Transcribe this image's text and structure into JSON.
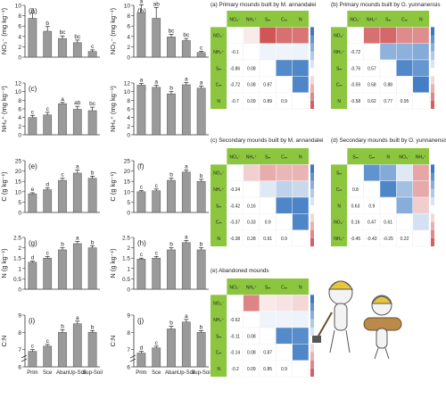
{
  "chart_data": [
    {
      "type": "bar",
      "panel": "(a)",
      "ylabel": "NO3- (mg kg-1)",
      "categories": [
        "Prim",
        "Sce",
        "Aban",
        "Up-Soil",
        "Sup-Soil"
      ],
      "values": [
        7.5,
        5.0,
        3.6,
        2.8,
        1.1
      ],
      "errors": [
        1.0,
        0.9,
        0.5,
        0.5,
        0.3
      ],
      "letters": [
        "a",
        "b",
        "bc",
        "bc",
        "c"
      ],
      "ylim": [
        0,
        10
      ],
      "yticks": [
        0,
        2,
        4,
        6,
        8,
        10
      ]
    },
    {
      "type": "bar",
      "panel": "(b)",
      "ylabel": "NO3- (mg kg-1)",
      "categories": [
        "Prim",
        "Sce",
        "Aban",
        "Up-Soil",
        "Sup-Soil"
      ],
      "values": [
        8.6,
        7.5,
        3.9,
        3.2,
        0.9
      ],
      "errors": [
        1.5,
        2.1,
        0.5,
        0.4,
        0.2
      ],
      "letters": [
        "a",
        "ab",
        "bc",
        "bc",
        "c"
      ],
      "ylim": [
        0,
        10
      ],
      "yticks": [
        0,
        2,
        4,
        6,
        8,
        10
      ]
    },
    {
      "type": "bar",
      "panel": "(c)",
      "ylabel": "NH4+ (mg kg-1)",
      "categories": [
        "Prim",
        "Sce",
        "Aban",
        "Up-Soil",
        "Sup-Soil"
      ],
      "values": [
        4.0,
        4.6,
        7.2,
        5.9,
        5.6
      ],
      "errors": [
        0.5,
        0.6,
        0.3,
        0.7,
        0.8
      ],
      "letters": [
        "c",
        "c",
        "a",
        "ab",
        "bc"
      ],
      "ylim": [
        0,
        12
      ],
      "yticks": [
        0,
        2,
        4,
        6,
        8,
        10,
        12
      ]
    },
    {
      "type": "bar",
      "panel": "(d)",
      "ylabel": "NH4+ (mg kg-1)",
      "categories": [
        "Prim",
        "Sce",
        "Aban",
        "Up-Soil",
        "Sup-Soil"
      ],
      "values": [
        11.5,
        11.0,
        9.5,
        11.6,
        10.8
      ],
      "errors": [
        0.4,
        0.5,
        0.5,
        0.5,
        0.5
      ],
      "letters": [
        "a",
        "a",
        "b",
        "a",
        "a"
      ],
      "ylim": [
        0,
        12
      ],
      "yticks": [
        0,
        2,
        4,
        6,
        8,
        10,
        12
      ]
    },
    {
      "type": "bar",
      "panel": "(e)",
      "ylabel": "C (g kg-1)",
      "categories": [
        "Prim",
        "Sce",
        "Aban",
        "Up-Soil",
        "Sup-Soil"
      ],
      "values": [
        9.0,
        11.0,
        15.5,
        19.0,
        16.5
      ],
      "errors": [
        0.5,
        0.8,
        1.0,
        1.5,
        1.0
      ],
      "letters": [
        "e",
        "d",
        "c",
        "a",
        "b"
      ],
      "ylim": [
        0,
        25
      ],
      "yticks": [
        0,
        5,
        10,
        15,
        20,
        25
      ]
    },
    {
      "type": "bar",
      "panel": "(f)",
      "ylabel": "C (g kg-1)",
      "categories": [
        "Prim",
        "Sce",
        "Aban",
        "Up-Soil",
        "Sup-Soil"
      ],
      "values": [
        10.0,
        10.5,
        15.5,
        19.5,
        15.0
      ],
      "errors": [
        0.5,
        0.8,
        1.0,
        1.0,
        1.0
      ],
      "letters": [
        "c",
        "c",
        "b",
        "a",
        "b"
      ],
      "ylim": [
        0,
        25
      ],
      "yticks": [
        0,
        5,
        10,
        15,
        20,
        25
      ]
    },
    {
      "type": "bar",
      "panel": "(g)",
      "ylabel": "N (g kg-1)",
      "categories": [
        "Prim",
        "Sce",
        "Aban",
        "Up-Soil",
        "Sup-Soil"
      ],
      "values": [
        1.3,
        1.5,
        1.9,
        2.2,
        2.0
      ],
      "errors": [
        0.05,
        0.08,
        0.1,
        0.1,
        0.1
      ],
      "letters": [
        "d",
        "c",
        "b",
        "a",
        "b"
      ],
      "ylim": [
        0,
        2.5
      ],
      "yticks": [
        0,
        0.5,
        1.0,
        1.5,
        2.0,
        2.5
      ]
    },
    {
      "type": "bar",
      "panel": "(h)",
      "ylabel": "N (g kg-1)",
      "categories": [
        "Prim",
        "Sce",
        "Aban",
        "Up-Soil",
        "Sup-Soil"
      ],
      "values": [
        1.45,
        1.5,
        1.9,
        2.25,
        1.9
      ],
      "errors": [
        0.05,
        0.08,
        0.1,
        0.1,
        0.1
      ],
      "letters": [
        "c",
        "c",
        "b",
        "a",
        "b"
      ],
      "ylim": [
        0,
        2.5
      ],
      "yticks": [
        0,
        0.5,
        1.0,
        1.5,
        2.0,
        2.5
      ]
    },
    {
      "type": "bar",
      "panel": "(i)",
      "ylabel": "C:N",
      "categories": [
        "Prim",
        "Sce",
        "Aban",
        "Up-Soil",
        "Sup-Soil"
      ],
      "values": [
        6.9,
        7.2,
        8.0,
        8.5,
        8.0
      ],
      "errors": [
        0.1,
        0.1,
        0.15,
        0.15,
        0.1
      ],
      "letters": [
        "c",
        "c",
        "b",
        "a",
        "b"
      ],
      "ylim": [
        6,
        9
      ],
      "yticks": [
        6,
        7,
        8,
        9
      ],
      "broken_axis": true
    },
    {
      "type": "bar",
      "panel": "(j)",
      "ylabel": "C:N",
      "categories": [
        "Prim",
        "Sce",
        "Aban",
        "Up-Soil",
        "Sup-Soil"
      ],
      "values": [
        6.8,
        7.1,
        8.2,
        8.6,
        8.0
      ],
      "errors": [
        0.1,
        0.1,
        0.15,
        0.15,
        0.1
      ],
      "letters": [
        "d",
        "c",
        "b",
        "a",
        "b"
      ],
      "ylim": [
        6,
        9
      ],
      "yticks": [
        6,
        7,
        8,
        9
      ],
      "broken_axis": true
    },
    {
      "type": "heatmap",
      "panel": "(a)",
      "title": "(a) Primary mounds built by M. annandalei",
      "labels": [
        "NO3-",
        "NH4+",
        "Sm",
        "Cm",
        "N"
      ],
      "values": [
        [
          1,
          -0.1,
          -0.86,
          -0.72,
          -0.7
        ],
        [
          -0.1,
          1,
          0.08,
          0.08,
          0.09
        ],
        [
          -0.86,
          0.08,
          1,
          0.87,
          0.89
        ],
        [
          -0.72,
          0.08,
          0.87,
          1,
          0.9
        ],
        [
          -0.7,
          0.09,
          0.89,
          0.9,
          1
        ]
      ]
    },
    {
      "type": "heatmap",
      "panel": "(b)",
      "title": "(b) Primary mounds built by O. yunnanensis",
      "labels": [
        "NO3-",
        "NH4+",
        "Sm",
        "Cm",
        "N"
      ],
      "values": [
        [
          1,
          -0.72,
          -0.76,
          -0.59,
          -0.58
        ],
        [
          -0.72,
          1,
          0.57,
          0.58,
          0.62
        ],
        [
          -0.76,
          0.57,
          1,
          0.88,
          0.77
        ],
        [
          -0.59,
          0.58,
          0.88,
          1,
          0.95
        ],
        [
          -0.58,
          0.62,
          0.77,
          0.95,
          1
        ]
      ]
    },
    {
      "type": "heatmap",
      "panel": "(c)",
      "title": "(c) Secondary mounds built by M. annandalei",
      "labels": [
        "NO3-",
        "NH4+",
        "Sm",
        "Cm",
        "N"
      ],
      "values": [
        [
          1,
          -0.24,
          -0.42,
          -0.37,
          -0.38
        ],
        [
          -0.24,
          1,
          0.16,
          0.33,
          0.28
        ],
        [
          -0.42,
          0.16,
          1,
          0.9,
          0.91
        ],
        [
          -0.37,
          0.33,
          0.9,
          1,
          0.9
        ],
        [
          -0.38,
          0.28,
          0.91,
          0.9,
          1
        ]
      ]
    },
    {
      "type": "heatmap",
      "panel": "(d)",
      "title": "(d) Secondary mounds built by O. yunnanensis",
      "labels": [
        "Sm",
        "Cm",
        "N",
        "NO3-",
        "NH4+"
      ],
      "values": [
        [
          1,
          0.8,
          0.63,
          0.16,
          -0.45
        ],
        [
          0.8,
          1,
          0.9,
          0.47,
          -0.43
        ],
        [
          0.63,
          0.9,
          1,
          0.61,
          -0.25
        ],
        [
          0.16,
          0.47,
          0.61,
          1,
          0.22
        ],
        [
          -0.45,
          -0.43,
          -0.25,
          0.22,
          1
        ]
      ]
    },
    {
      "type": "heatmap",
      "panel": "(e)",
      "title": "(e) Abandoned mounds",
      "labels": [
        "NO3-",
        "NH4+",
        "Sm",
        "Cm",
        "N"
      ],
      "values": [
        [
          1,
          -0.62,
          -0.11,
          -0.14,
          -0.2
        ],
        [
          -0.62,
          1,
          0.08,
          0.08,
          0.09
        ],
        [
          -0.11,
          0.08,
          1,
          0.87,
          0.85
        ],
        [
          -0.14,
          0.08,
          0.87,
          1,
          0.9
        ],
        [
          -0.2,
          0.09,
          0.85,
          0.9,
          1
        ]
      ]
    }
  ],
  "panel_labels": {
    "a": "(a)",
    "b": "(b)",
    "c": "(c)",
    "d": "(d)",
    "e": "(e)",
    "f": "(f)",
    "g": "(g)",
    "h": "(h)",
    "i": "(i)",
    "j": "(j)"
  },
  "colors": {
    "bar": "#9a9a9a",
    "green": "#8cc63f",
    "positive": "#3a78c2",
    "negative": "#c83a3a"
  }
}
